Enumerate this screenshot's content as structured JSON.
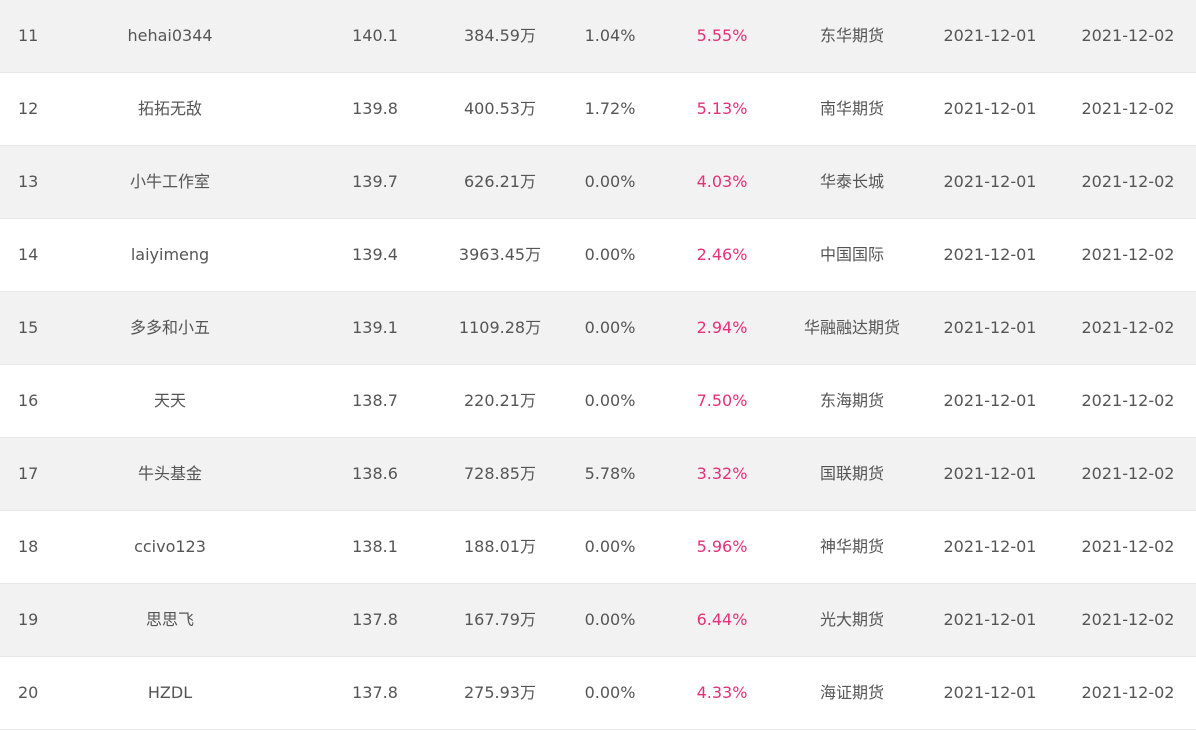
{
  "rows": [
    {
      "rank": "11",
      "name": "hehai0344",
      "score": "140.1",
      "equity": "384.59万",
      "drawdown": "1.04%",
      "return": "5.55%",
      "broker": "东华期货",
      "start": "2021-12-01",
      "end": "2021-12-02"
    },
    {
      "rank": "12",
      "name": "拓拓无敌",
      "score": "139.8",
      "equity": "400.53万",
      "drawdown": "1.72%",
      "return": "5.13%",
      "broker": "南华期货",
      "start": "2021-12-01",
      "end": "2021-12-02"
    },
    {
      "rank": "13",
      "name": "小牛工作室",
      "score": "139.7",
      "equity": "626.21万",
      "drawdown": "0.00%",
      "return": "4.03%",
      "broker": "华泰长城",
      "start": "2021-12-01",
      "end": "2021-12-02"
    },
    {
      "rank": "14",
      "name": "laiyimeng",
      "score": "139.4",
      "equity": "3963.45万",
      "drawdown": "0.00%",
      "return": "2.46%",
      "broker": "中国国际",
      "start": "2021-12-01",
      "end": "2021-12-02"
    },
    {
      "rank": "15",
      "name": "多多和小五",
      "score": "139.1",
      "equity": "1109.28万",
      "drawdown": "0.00%",
      "return": "2.94%",
      "broker": "华融融达期货",
      "start": "2021-12-01",
      "end": "2021-12-02"
    },
    {
      "rank": "16",
      "name": "天天",
      "score": "138.7",
      "equity": "220.21万",
      "drawdown": "0.00%",
      "return": "7.50%",
      "broker": "东海期货",
      "start": "2021-12-01",
      "end": "2021-12-02"
    },
    {
      "rank": "17",
      "name": "牛头基金",
      "score": "138.6",
      "equity": "728.85万",
      "drawdown": "5.78%",
      "return": "3.32%",
      "broker": "国联期货",
      "start": "2021-12-01",
      "end": "2021-12-02"
    },
    {
      "rank": "18",
      "name": "ccivo123",
      "score": "138.1",
      "equity": "188.01万",
      "drawdown": "0.00%",
      "return": "5.96%",
      "broker": "神华期货",
      "start": "2021-12-01",
      "end": "2021-12-02"
    },
    {
      "rank": "19",
      "name": "思思飞",
      "score": "137.8",
      "equity": "167.79万",
      "drawdown": "0.00%",
      "return": "6.44%",
      "broker": "光大期货",
      "start": "2021-12-01",
      "end": "2021-12-02"
    },
    {
      "rank": "20",
      "name": "HZDL",
      "score": "137.8",
      "equity": "275.93万",
      "drawdown": "0.00%",
      "return": "4.33%",
      "broker": "海证期货",
      "start": "2021-12-01",
      "end": "2021-12-02"
    }
  ],
  "colors": {
    "return_text": "#e6307a",
    "stripe": "#f2f2f2",
    "text": "#555555"
  }
}
